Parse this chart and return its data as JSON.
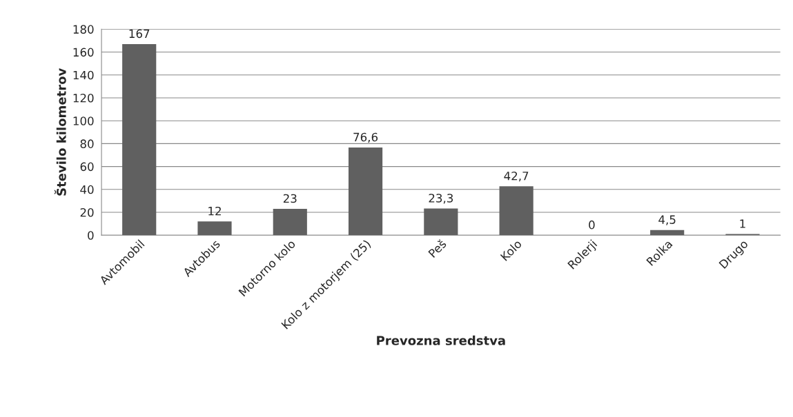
{
  "chart_data": {
    "type": "bar",
    "xlabel": "Prevozna sredstva",
    "ylabel": "Število kilometrov",
    "categories": [
      "Avtomobil",
      "Avtobus",
      "Motorno kolo",
      "Kolo z motorjem (25)",
      "Peš",
      "Kolo",
      "Rolerji",
      "Rolka",
      "Drugo"
    ],
    "values": [
      167,
      12,
      23,
      76.6,
      23.3,
      42.7,
      0,
      4.5,
      1
    ],
    "value_labels": [
      "167",
      "12",
      "23",
      "76,6",
      "23,3",
      "42,7",
      "0",
      "4,5",
      "1"
    ],
    "color": "#606060",
    "ylim": [
      0,
      180
    ],
    "yticks": [
      0,
      20,
      40,
      60,
      80,
      100,
      120,
      140,
      160,
      180
    ],
    "grid": "y",
    "legend": false
  }
}
